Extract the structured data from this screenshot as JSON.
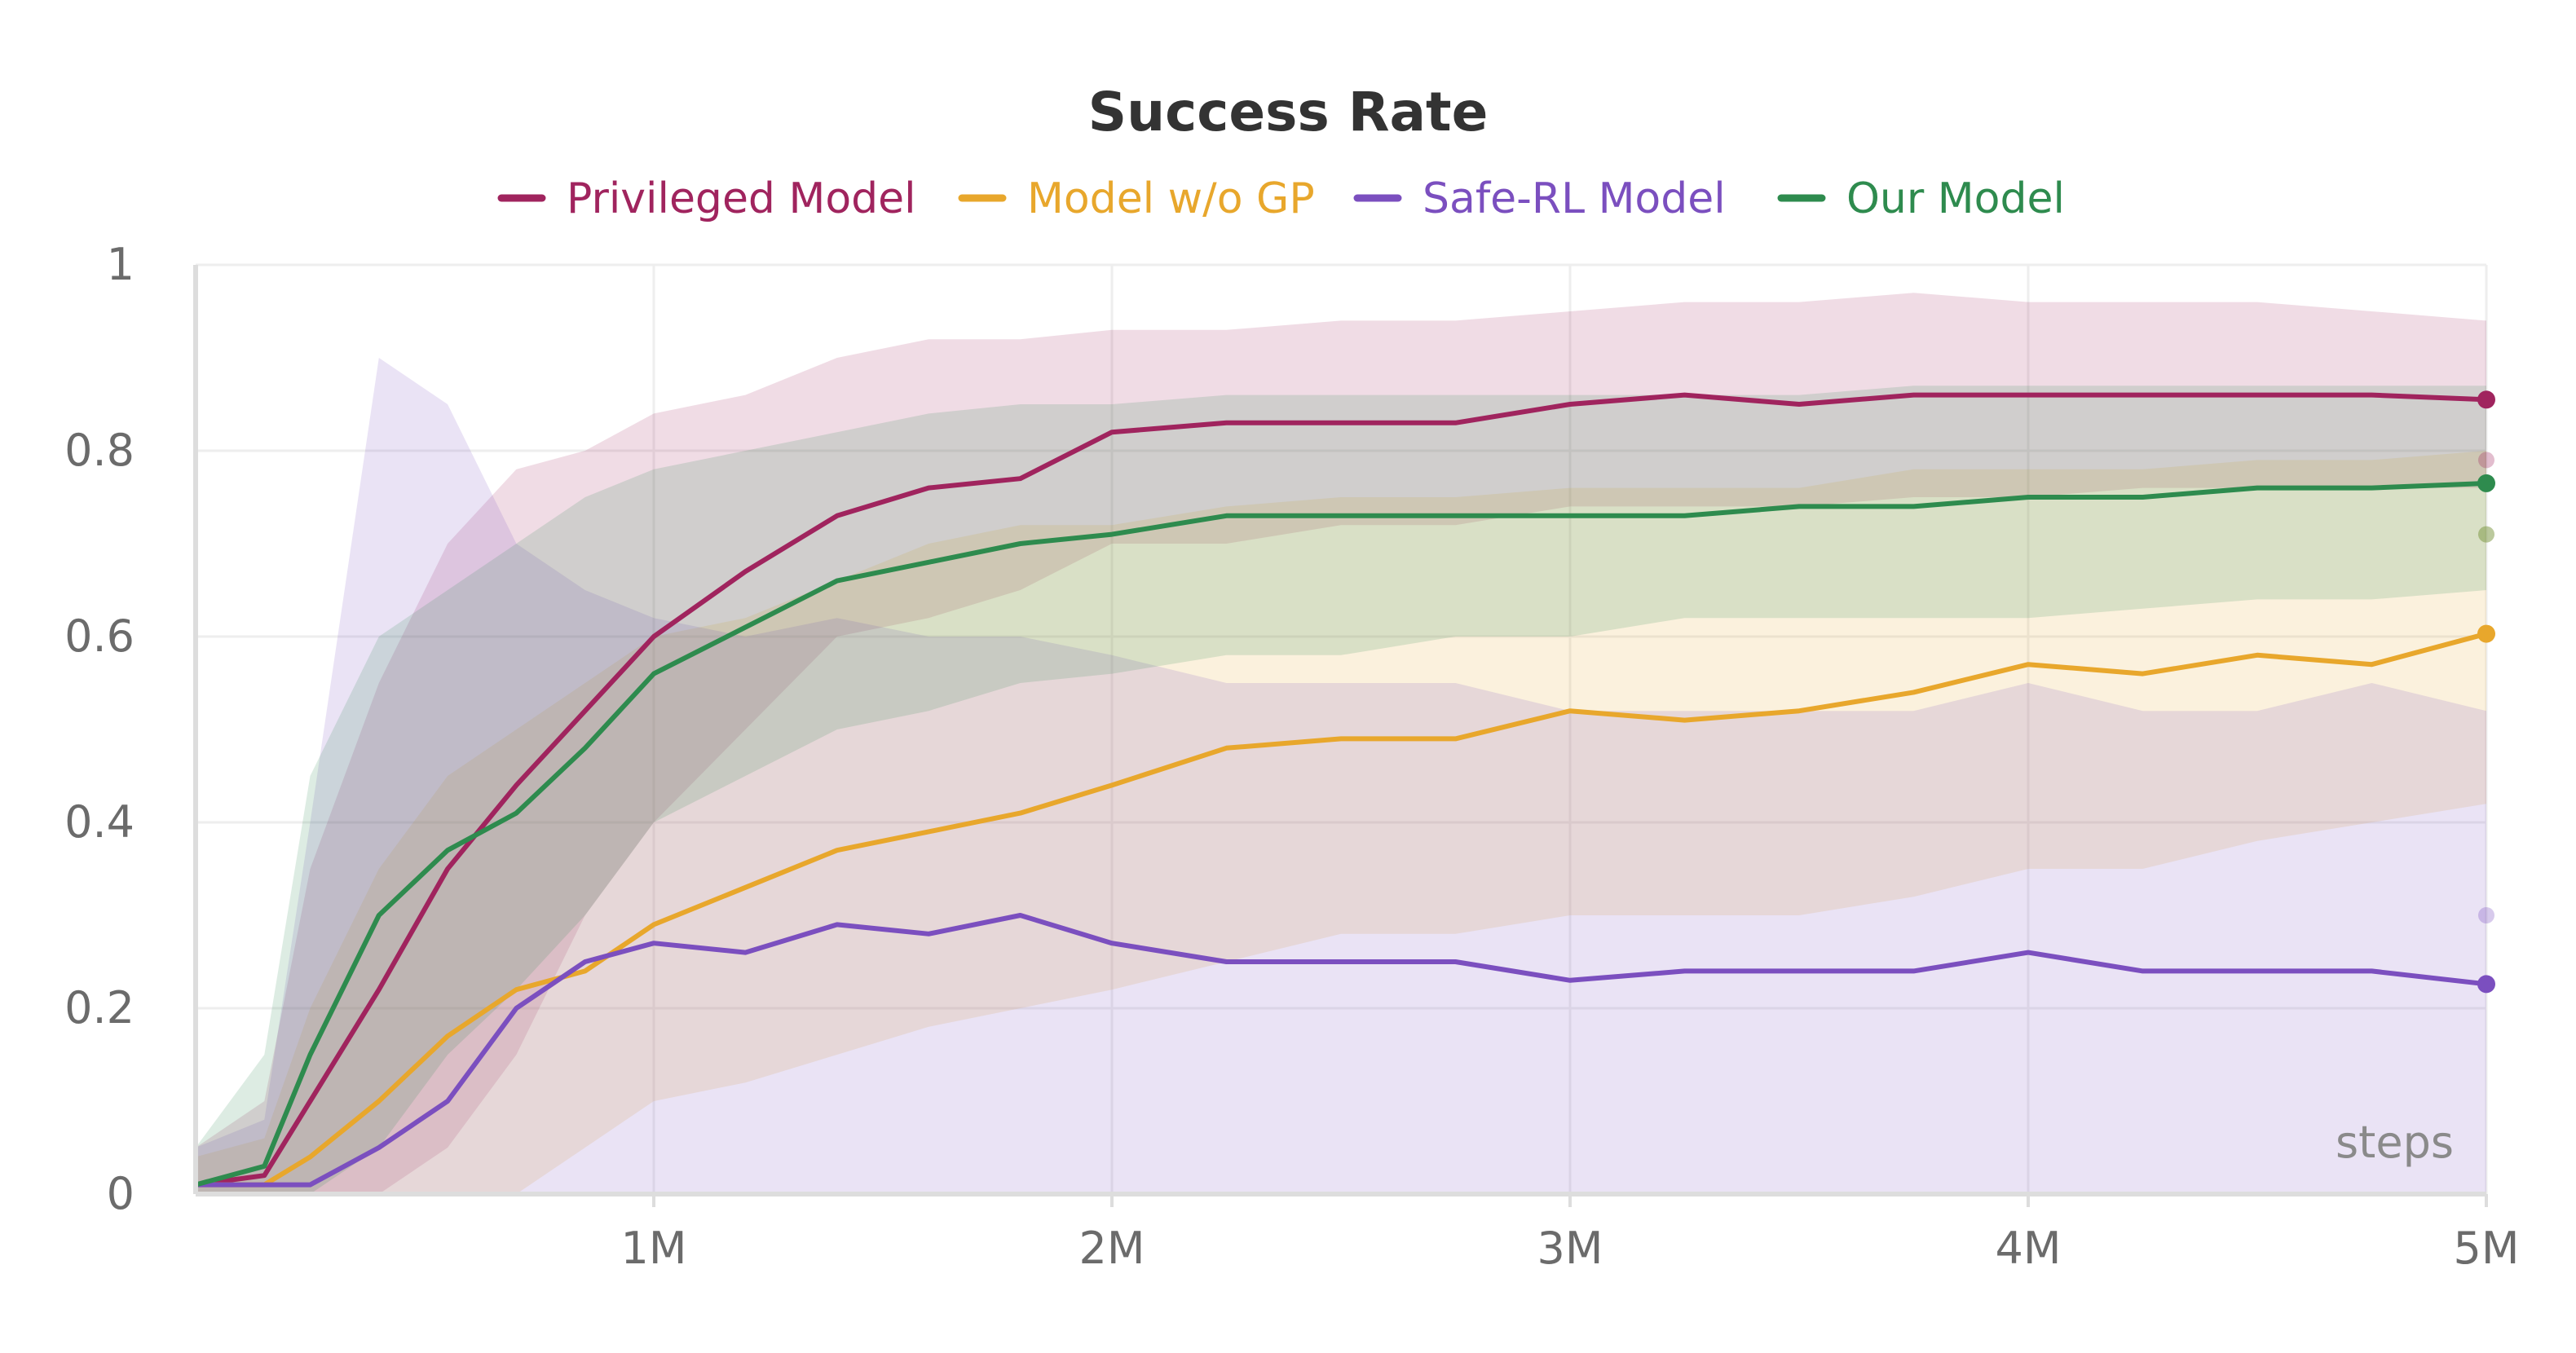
{
  "chart_data": {
    "type": "line",
    "title": "Success Rate",
    "xlabel": "steps",
    "ylabel": "",
    "xlim": [
      0,
      5000000
    ],
    "ylim": [
      0,
      1
    ],
    "grid": true,
    "legend_position": "top-center",
    "x_ticks": [
      1000000,
      2000000,
      3000000,
      4000000,
      5000000
    ],
    "x_tick_labels": [
      "1M",
      "2M",
      "3M",
      "4M",
      "5M"
    ],
    "y_ticks": [
      0,
      0.2,
      0.4,
      0.6,
      0.8,
      1
    ],
    "y_tick_labels": [
      "0",
      "0.2",
      "0.4",
      "0.6",
      "0.8",
      "1"
    ],
    "x": [
      0,
      150000,
      250000,
      400000,
      550000,
      700000,
      850000,
      1000000,
      1200000,
      1400000,
      1600000,
      1800000,
      2000000,
      2250000,
      2500000,
      2750000,
      3000000,
      3250000,
      3500000,
      3750000,
      4000000,
      4250000,
      4500000,
      4750000,
      5000000
    ],
    "series": [
      {
        "name": "Privileged Model",
        "color": "#a0245e",
        "values": [
          0.01,
          0.02,
          0.1,
          0.22,
          0.35,
          0.44,
          0.52,
          0.6,
          0.67,
          0.73,
          0.76,
          0.77,
          0.82,
          0.83,
          0.83,
          0.83,
          0.85,
          0.86,
          0.85,
          0.86,
          0.86,
          0.86,
          0.86,
          0.86,
          0.855
        ],
        "min": [
          0.0,
          0.0,
          0.0,
          0.0,
          0.05,
          0.15,
          0.3,
          0.4,
          0.5,
          0.6,
          0.62,
          0.65,
          0.7,
          0.7,
          0.72,
          0.72,
          0.74,
          0.74,
          0.74,
          0.75,
          0.75,
          0.76,
          0.76,
          0.76,
          0.76
        ],
        "max": [
          0.05,
          0.1,
          0.35,
          0.55,
          0.7,
          0.78,
          0.8,
          0.84,
          0.86,
          0.9,
          0.92,
          0.92,
          0.93,
          0.93,
          0.94,
          0.94,
          0.95,
          0.96,
          0.96,
          0.97,
          0.96,
          0.96,
          0.96,
          0.95,
          0.94
        ],
        "last_point_faint": 0.79
      },
      {
        "name": "Model w/o GP",
        "color": "#e8a72c",
        "values": [
          0.01,
          0.01,
          0.04,
          0.1,
          0.17,
          0.22,
          0.24,
          0.29,
          0.33,
          0.37,
          0.39,
          0.41,
          0.44,
          0.48,
          0.49,
          0.49,
          0.52,
          0.51,
          0.52,
          0.54,
          0.57,
          0.56,
          0.58,
          0.57,
          0.603
        ],
        "min": [
          0.0,
          0.0,
          0.0,
          0.0,
          0.0,
          0.0,
          0.05,
          0.1,
          0.12,
          0.15,
          0.18,
          0.2,
          0.22,
          0.25,
          0.28,
          0.28,
          0.3,
          0.3,
          0.3,
          0.32,
          0.35,
          0.35,
          0.38,
          0.4,
          0.42
        ],
        "max": [
          0.04,
          0.06,
          0.2,
          0.35,
          0.45,
          0.5,
          0.55,
          0.6,
          0.62,
          0.66,
          0.7,
          0.72,
          0.72,
          0.74,
          0.75,
          0.75,
          0.76,
          0.76,
          0.76,
          0.78,
          0.78,
          0.78,
          0.79,
          0.79,
          0.8
        ],
        "last_point_faint": 0.71
      },
      {
        "name": "Safe-RL Model",
        "color": "#7b4fbf",
        "values": [
          0.01,
          0.01,
          0.01,
          0.05,
          0.1,
          0.2,
          0.25,
          0.27,
          0.26,
          0.29,
          0.28,
          0.3,
          0.27,
          0.25,
          0.25,
          0.25,
          0.23,
          0.24,
          0.24,
          0.24,
          0.26,
          0.24,
          0.24,
          0.24,
          0.226
        ],
        "min": [
          0.0,
          0.0,
          0.0,
          0.0,
          0.0,
          0.0,
          0.0,
          0.0,
          0.0,
          0.0,
          0.0,
          0.0,
          0.0,
          0.0,
          0.0,
          0.0,
          0.0,
          0.0,
          0.0,
          0.0,
          0.0,
          0.0,
          0.0,
          0.0,
          0.0
        ],
        "max": [
          0.05,
          0.08,
          0.4,
          0.9,
          0.85,
          0.7,
          0.65,
          0.62,
          0.6,
          0.62,
          0.6,
          0.6,
          0.58,
          0.55,
          0.55,
          0.55,
          0.52,
          0.52,
          0.52,
          0.52,
          0.55,
          0.52,
          0.52,
          0.55,
          0.52
        ],
        "last_point_faint": 0.3
      },
      {
        "name": "Our Model",
        "color": "#2e8b4e",
        "values": [
          0.01,
          0.03,
          0.15,
          0.3,
          0.37,
          0.41,
          0.48,
          0.56,
          0.61,
          0.66,
          0.68,
          0.7,
          0.71,
          0.73,
          0.73,
          0.73,
          0.73,
          0.73,
          0.74,
          0.74,
          0.75,
          0.75,
          0.76,
          0.76,
          0.765
        ],
        "min": [
          0.0,
          0.0,
          0.0,
          0.05,
          0.15,
          0.22,
          0.3,
          0.4,
          0.45,
          0.5,
          0.52,
          0.55,
          0.56,
          0.58,
          0.58,
          0.6,
          0.6,
          0.62,
          0.62,
          0.62,
          0.62,
          0.63,
          0.64,
          0.64,
          0.65
        ],
        "max": [
          0.05,
          0.15,
          0.45,
          0.6,
          0.65,
          0.7,
          0.75,
          0.78,
          0.8,
          0.82,
          0.84,
          0.85,
          0.85,
          0.86,
          0.86,
          0.86,
          0.86,
          0.86,
          0.86,
          0.87,
          0.87,
          0.87,
          0.87,
          0.87,
          0.87
        ],
        "last_point_faint": 0.71
      }
    ]
  }
}
